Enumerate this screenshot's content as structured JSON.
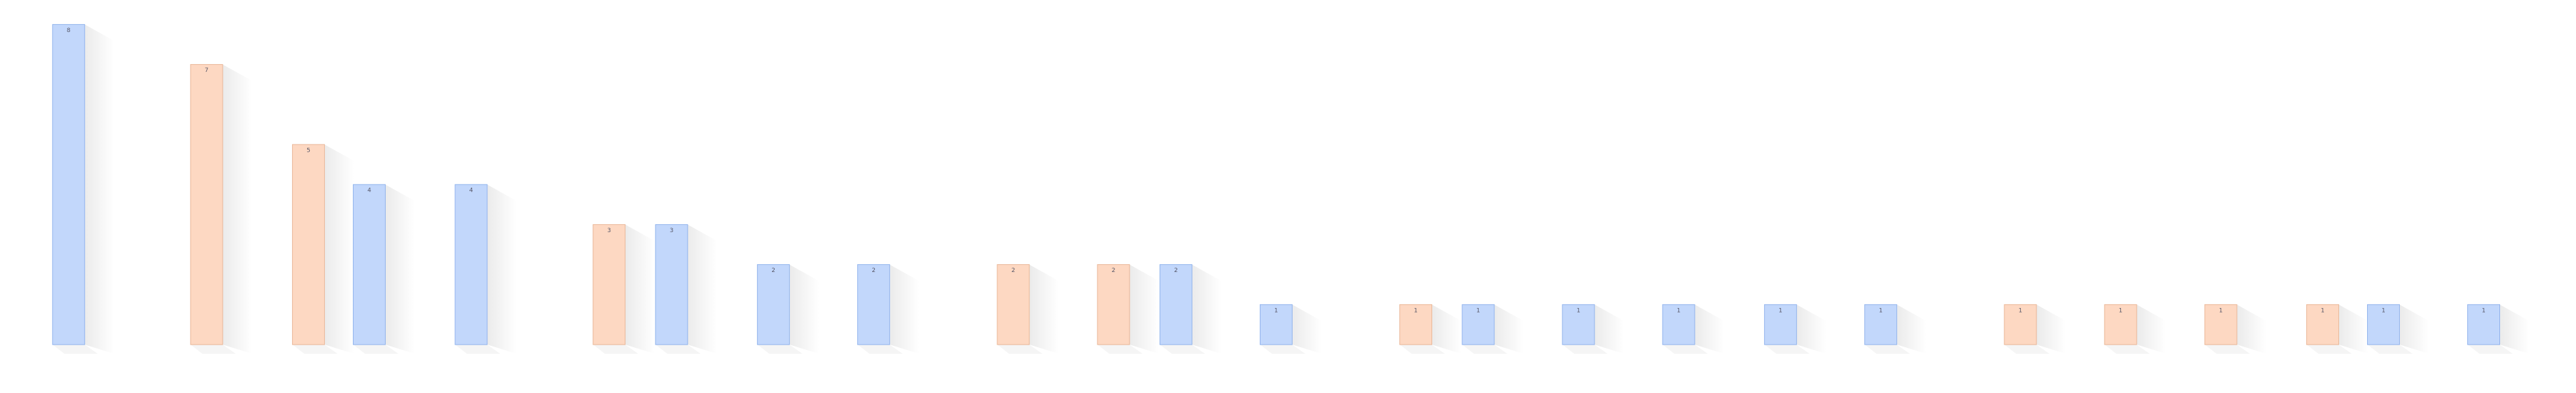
{
  "chart_data": {
    "type": "bar",
    "categories": [
      null,
      null,
      null,
      null,
      null,
      null,
      null,
      null,
      null,
      null,
      null,
      null,
      null,
      null,
      null,
      null,
      null,
      null,
      null,
      null,
      null,
      null,
      null,
      null,
      null
    ],
    "values": [
      8,
      7,
      5,
      4,
      4,
      3,
      3,
      2,
      2,
      2,
      2,
      2,
      1,
      1,
      1,
      1,
      1,
      1,
      1,
      1,
      1,
      1,
      1,
      1,
      1
    ],
    "colors": [
      "#c2d7fb",
      "#fdd8c2",
      "#fdd8c2",
      "#c2d7fb",
      "#c2d7fb",
      "#fdd8c2",
      "#c2d7fb",
      "#c2d7fb",
      "#c2d7fb",
      "#fdd8c2",
      "#fdd8c2",
      "#c2d7fb",
      "#c2d7fb",
      "#fdd8c2",
      "#c2d7fb",
      "#c2d7fb",
      "#c2d7fb",
      "#c2d7fb",
      "#c2d7fb",
      "#fdd8c2",
      "#fdd8c2",
      "#fdd8c2",
      "#fdd8c2",
      "#c2d7fb",
      "#c2d7fb"
    ]
  }
}
